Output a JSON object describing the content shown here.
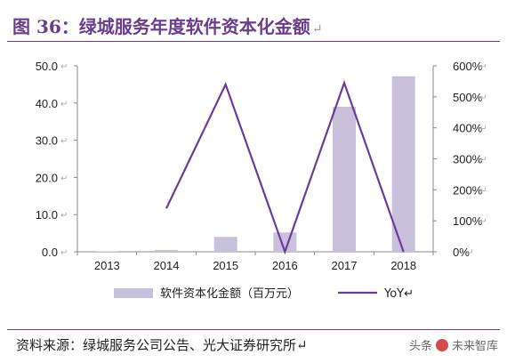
{
  "title": {
    "text": "图 36：绿城服务年度软件资本化金额",
    "mark": "↵"
  },
  "source": {
    "text": "资料来源：绿城服务公司公告、光大证券研究所↵"
  },
  "watermark": {
    "prefix": "头条",
    "name": "未来智库",
    "icon": "toutiao-logo-icon",
    "icon_color": "#d24a4a"
  },
  "colors": {
    "bar": "#c9c0dc",
    "line": "#6a3d9a",
    "axis": "#888888",
    "text": "#222222",
    "return_mark": "#aaaaaa"
  },
  "chart_data": {
    "type": "bar+line",
    "categories": [
      "2013",
      "2014",
      "2015",
      "2016",
      "2017",
      "2018"
    ],
    "series": [
      {
        "name": "软件资本化金额（百万元）",
        "type": "bar",
        "axis": "left",
        "values": [
          0.1,
          0.5,
          4.0,
          5.2,
          39.0,
          47.2
        ]
      },
      {
        "name": "YoY",
        "type": "line",
        "axis": "right",
        "values": [
          null,
          140,
          540,
          0,
          545,
          0
        ]
      }
    ],
    "y_left": {
      "min": 0,
      "max": 50,
      "ticks": [
        "0.0",
        "10.0",
        "20.0",
        "30.0",
        "40.0",
        "50.0"
      ]
    },
    "y_right": {
      "min": 0,
      "max": 600,
      "ticks": [
        "0%",
        "100%",
        "200%",
        "300%",
        "400%",
        "500%",
        "600%"
      ]
    },
    "return_mark": "↵",
    "legend": {
      "position": "bottom",
      "bar_label": "软件资本化金额（百万元）",
      "line_label": "YoY↵"
    }
  }
}
